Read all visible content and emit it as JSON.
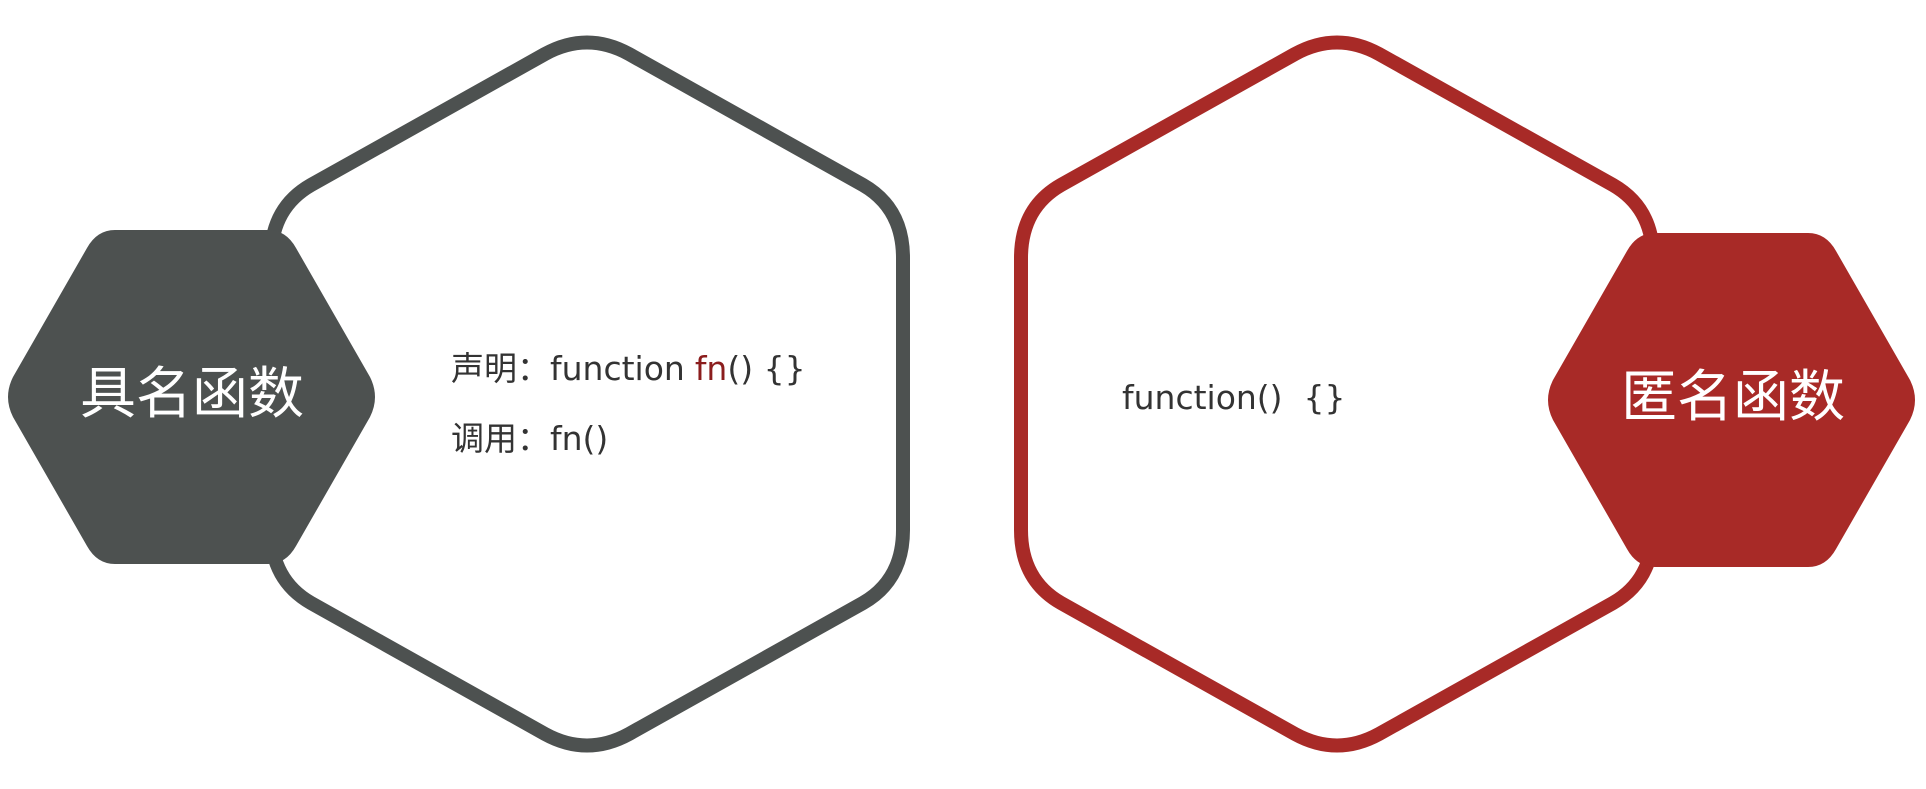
{
  "colors": {
    "named_accent": "#4d5150",
    "anonymous_accent": "#a82a27",
    "highlight": "#8b1d1d",
    "text": "#333333",
    "background": "#ffffff"
  },
  "named_function": {
    "title": "具名函数",
    "declare_label": "声明：",
    "declare_keyword": "function",
    "declare_name": "fn",
    "declare_rest": "() {}",
    "call_label": "调用：",
    "call_code": "fn()"
  },
  "anonymous_function": {
    "title": "匿名函数",
    "code": "function()  {}"
  }
}
